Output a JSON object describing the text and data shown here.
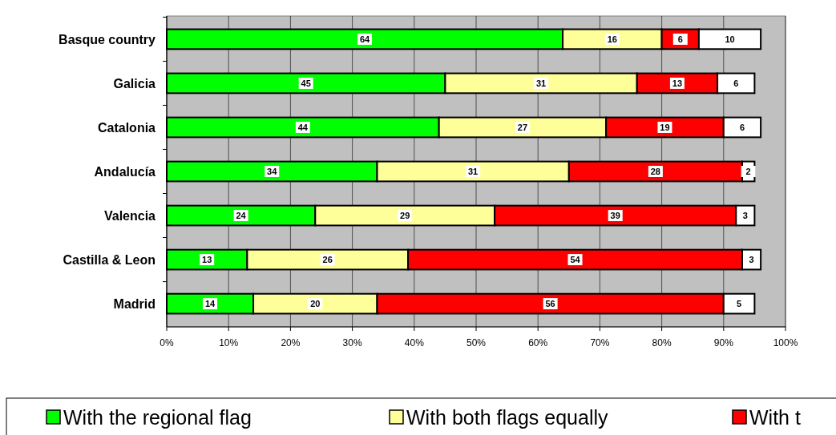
{
  "chart_data": {
    "type": "bar",
    "orientation": "horizontal",
    "stacked": true,
    "data_labels": true,
    "grid": "x",
    "legend": "bottom",
    "categories": [
      "Basque country",
      "Galicia",
      "Catalonia",
      "Andalucía",
      "Valencia",
      "Castilla & Leon",
      "Madrid"
    ],
    "series": [
      {
        "name": "With the regional flag",
        "color": "#00ff00",
        "values": [
          64,
          45,
          44,
          34,
          24,
          13,
          14
        ]
      },
      {
        "name": "With both flags equally",
        "color": "#ffff99",
        "values": [
          16,
          31,
          27,
          31,
          29,
          26,
          20
        ]
      },
      {
        "name": "With t",
        "color": "#ff0000",
        "values": [
          6,
          13,
          19,
          28,
          39,
          54,
          56
        ]
      },
      {
        "color": "#ffffff",
        "values": [
          10,
          6,
          6,
          2,
          3,
          3,
          5
        ]
      }
    ],
    "xlim": [
      0,
      100
    ],
    "xticks": [
      {
        "value": 0,
        "label": "0%"
      },
      {
        "value": 10,
        "label": "10%"
      },
      {
        "value": 20,
        "label": "20%"
      },
      {
        "value": 30,
        "label": "30%"
      },
      {
        "value": 40,
        "label": "40%"
      },
      {
        "value": 50,
        "label": "50%"
      },
      {
        "value": 60,
        "label": "60%"
      },
      {
        "value": 70,
        "label": "70%"
      },
      {
        "value": 80,
        "label": "80%"
      },
      {
        "value": 90,
        "label": "90%"
      },
      {
        "value": 100,
        "label": "100%"
      }
    ]
  }
}
